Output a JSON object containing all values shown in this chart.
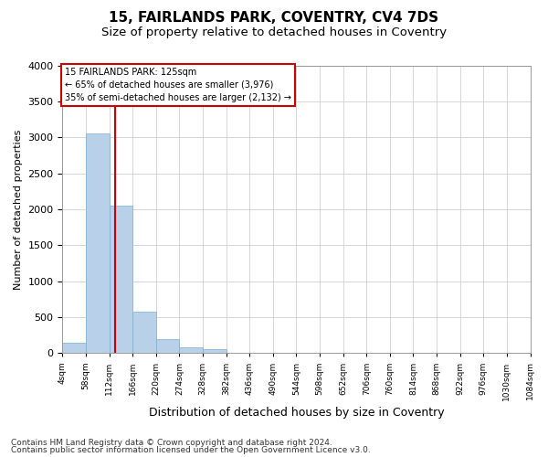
{
  "title": "15, FAIRLANDS PARK, COVENTRY, CV4 7DS",
  "subtitle": "Size of property relative to detached houses in Coventry",
  "xlabel": "Distribution of detached houses by size in Coventry",
  "ylabel": "Number of detached properties",
  "footer_line1": "Contains HM Land Registry data © Crown copyright and database right 2024.",
  "footer_line2": "Contains public sector information licensed under the Open Government Licence v3.0.",
  "annotation_title": "15 FAIRLANDS PARK: 125sqm",
  "annotation_line2": "← 65% of detached houses are smaller (3,976)",
  "annotation_line3": "35% of semi-detached houses are larger (2,132) →",
  "property_size": 125,
  "bin_edges": [
    4,
    58,
    112,
    166,
    220,
    274,
    328,
    382,
    436,
    490,
    544,
    598,
    652,
    706,
    760,
    814,
    868,
    922,
    976,
    1030,
    1084
  ],
  "bar_heights": [
    150,
    3050,
    2050,
    580,
    200,
    80,
    60,
    0,
    0,
    0,
    0,
    0,
    0,
    0,
    0,
    0,
    0,
    0,
    0,
    0
  ],
  "bar_color": "#b8d0e8",
  "bar_edge_color": "#7bafd4",
  "line_color": "#cc0000",
  "ylim": [
    0,
    4000
  ],
  "yticks": [
    0,
    500,
    1000,
    1500,
    2000,
    2500,
    3000,
    3500,
    4000
  ],
  "tick_labels": [
    "4sqm",
    "58sqm",
    "112sqm",
    "166sqm",
    "220sqm",
    "274sqm",
    "328sqm",
    "382sqm",
    "436sqm",
    "490sqm",
    "544sqm",
    "598sqm",
    "652sqm",
    "706sqm",
    "760sqm",
    "814sqm",
    "868sqm",
    "922sqm",
    "976sqm",
    "1030sqm",
    "1084sqm"
  ],
  "background_color": "#ffffff",
  "grid_color": "#d0d0d0",
  "annotation_box_color": "#ffffff",
  "annotation_box_edge": "#cc0000",
  "title_fontsize": 11,
  "subtitle_fontsize": 9.5,
  "xlabel_fontsize": 9,
  "ylabel_fontsize": 8,
  "footer_fontsize": 6.5
}
